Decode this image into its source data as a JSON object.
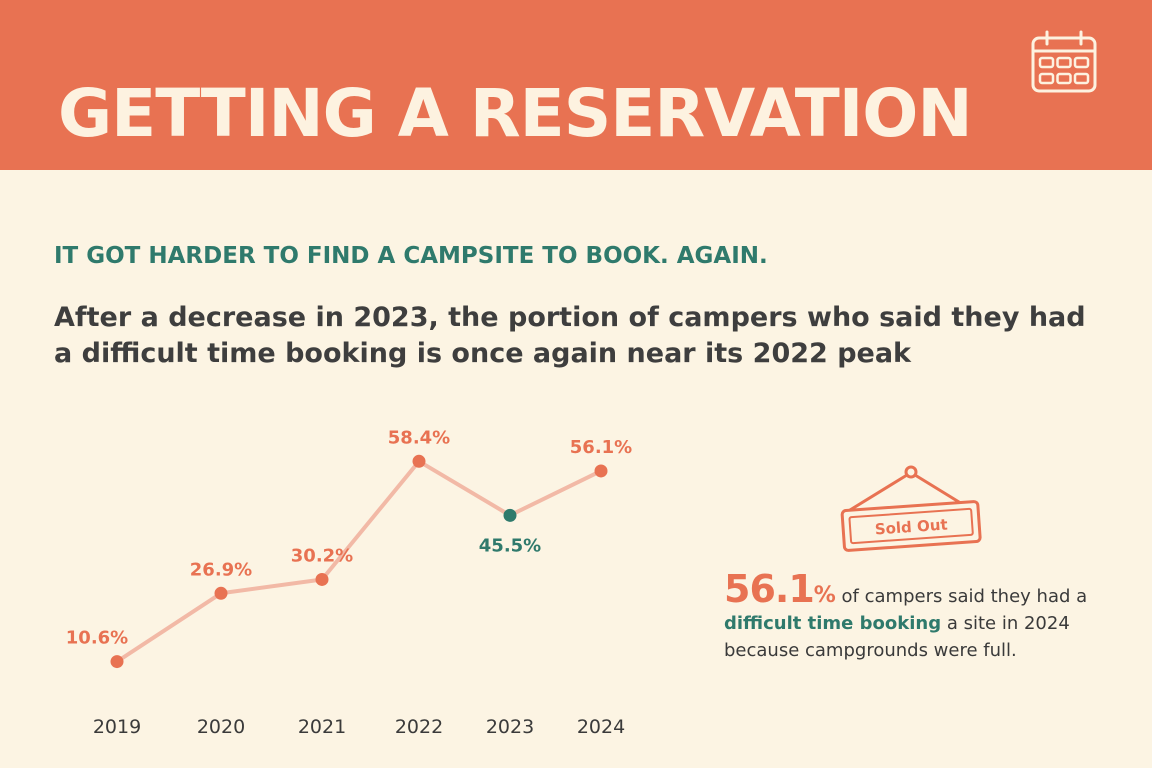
{
  "header": {
    "title": "GETTING A RESERVATION"
  },
  "icons": {
    "calendar": "calendar-icon",
    "sign": "sold-out-sign-icon"
  },
  "subtitle": "IT GOT HARDER TO FIND A CAMPSITE TO BOOK. AGAIN.",
  "lead": "After a decrease in 2023, the portion of campers who said they had a difficult time booking is once again near its 2022 peak",
  "sign_label": "Sold Out",
  "stat": {
    "big": "56.1",
    "pct": "%",
    "text1": " of campers said they had a ",
    "emphasis": "difficult time booking",
    "text2": " a site in 2024 because campgrounds were full."
  },
  "colors": {
    "header": "#e87252",
    "background": "#fcf4e3",
    "accent": "#e87252",
    "teal": "#2f7a6c",
    "line": "#f2b9a6"
  },
  "chart_data": {
    "type": "line",
    "categories": [
      "2019",
      "2020",
      "2021",
      "2022",
      "2023",
      "2024"
    ],
    "values": [
      10.6,
      26.9,
      30.2,
      58.4,
      45.5,
      56.1
    ],
    "labels": [
      "10.6%",
      "26.9%",
      "30.2%",
      "58.4%",
      "45.5%",
      "56.1%"
    ],
    "highlight_index": 4,
    "grid": false
  }
}
